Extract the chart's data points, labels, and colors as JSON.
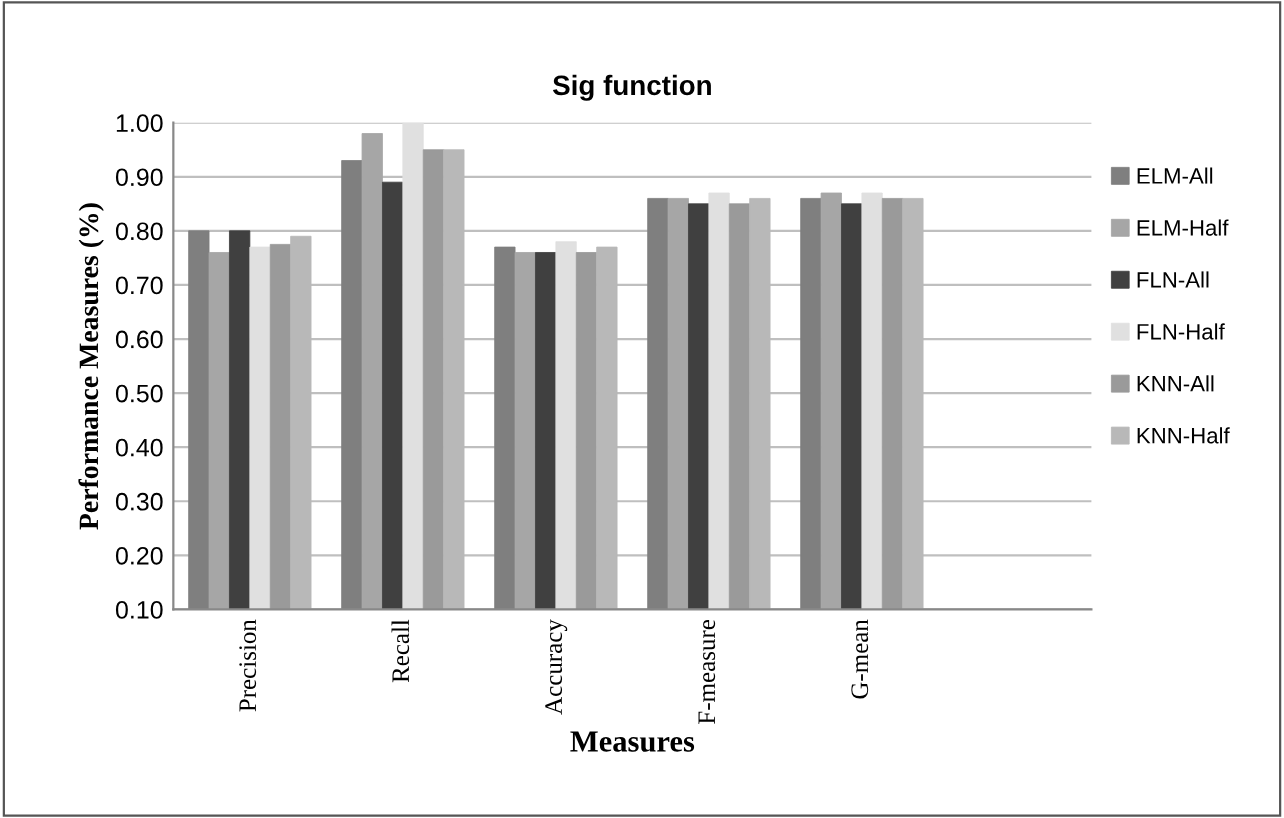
{
  "chart_data": {
    "type": "bar",
    "title": "Sig function",
    "xlabel": "Measures",
    "ylabel": "Performance Measures (%)",
    "categories": [
      "Precision",
      "Recall",
      "Accuracy",
      "F-measure",
      "G-mean"
    ],
    "series": [
      {
        "name": "ELM-All",
        "color": "#7f7f7f",
        "values": [
          0.8,
          0.93,
          0.77,
          0.86,
          0.86
        ]
      },
      {
        "name": "ELM-Half",
        "color": "#a6a6a6",
        "values": [
          0.76,
          0.98,
          0.76,
          0.86,
          0.87
        ]
      },
      {
        "name": "FLN-All",
        "color": "#404040",
        "values": [
          0.8,
          0.89,
          0.76,
          0.85,
          0.85
        ]
      },
      {
        "name": "FLN-Half",
        "color": "#e0e0e0",
        "values": [
          0.77,
          1.0,
          0.78,
          0.87,
          0.87
        ]
      },
      {
        "name": "KNN-All",
        "color": "#9a9a9a",
        "values": [
          0.775,
          0.95,
          0.76,
          0.85,
          0.86
        ]
      },
      {
        "name": "KNN-Half",
        "color": "#b8b8b8",
        "values": [
          0.79,
          0.95,
          0.77,
          0.86,
          0.86
        ]
      }
    ],
    "ylim": [
      0.1,
      1.0
    ],
    "yticks": [
      {
        "value": 0.1,
        "label": "0.10"
      },
      {
        "value": 0.2,
        "label": "0.20"
      },
      {
        "value": 0.3,
        "label": "0.30"
      },
      {
        "value": 0.4,
        "label": "0.40"
      },
      {
        "value": 0.5,
        "label": "0.50"
      },
      {
        "value": 0.6,
        "label": "0.60"
      },
      {
        "value": 0.7,
        "label": "0.70"
      },
      {
        "value": 0.8,
        "label": "0.80"
      },
      {
        "value": 0.9,
        "label": "0.90"
      },
      {
        "value": 1.0,
        "label": "1.00"
      }
    ],
    "grid": "y",
    "legend": "right"
  }
}
